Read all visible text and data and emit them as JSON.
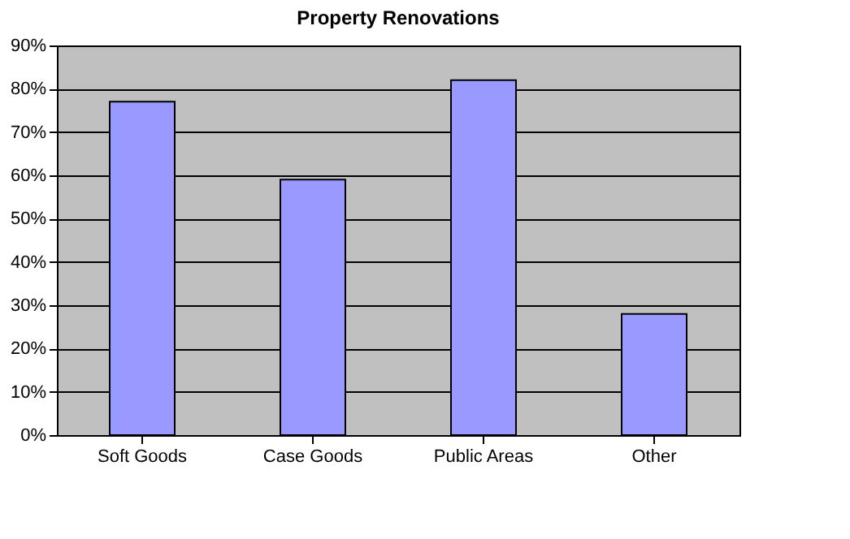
{
  "chart_data": {
    "type": "bar",
    "title": "Property Renovations",
    "categories": [
      "Soft Goods",
      "Case Goods",
      "Public Areas",
      "Other"
    ],
    "values": [
      77,
      59,
      82,
      28
    ],
    "color": "#9999ff",
    "ylim": [
      0,
      90
    ],
    "yticks": [
      {
        "value": 0,
        "label": "0%"
      },
      {
        "value": 10,
        "label": "10%"
      },
      {
        "value": 20,
        "label": "20%"
      },
      {
        "value": 30,
        "label": "30%"
      },
      {
        "value": 40,
        "label": "40%"
      },
      {
        "value": 50,
        "label": "50%"
      },
      {
        "value": 60,
        "label": "60%"
      },
      {
        "value": 70,
        "label": "70%"
      },
      {
        "value": 80,
        "label": "80%"
      },
      {
        "value": 90,
        "label": "90%"
      }
    ],
    "grid": "y"
  }
}
